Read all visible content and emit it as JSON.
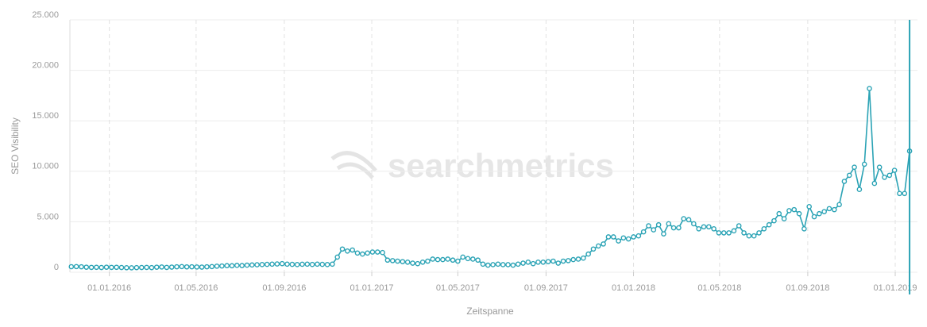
{
  "chart_data": {
    "type": "line",
    "watermark": "searchmetrics",
    "ylabel": "SEO Visibility",
    "xlabel": "Zeitspanne",
    "xlim": [
      "2015-11-07",
      "2019-02-01"
    ],
    "xticks": [
      {
        "value": "2016-01-01",
        "label": "01.01.2016"
      },
      {
        "value": "2016-05-01",
        "label": "01.05.2016"
      },
      {
        "value": "2016-09-01",
        "label": "01.09.2016"
      },
      {
        "value": "2017-01-01",
        "label": "01.01.2017"
      },
      {
        "value": "2017-05-01",
        "label": "01.05.2017"
      },
      {
        "value": "2017-09-01",
        "label": "01.09.2017"
      },
      {
        "value": "2018-01-01",
        "label": "01.01.2018"
      },
      {
        "value": "2018-05-01",
        "label": "01.05.2018"
      },
      {
        "value": "2018-09-01",
        "label": "01.09.2018"
      },
      {
        "value": "2019-01-01",
        "label": "01.01.2019"
      }
    ],
    "ylim": [
      0,
      25000
    ],
    "yticks": [
      0,
      {
        "value": 5000,
        "label": "5.000"
      },
      {
        "value": 10000,
        "label": "10.000"
      },
      {
        "value": 15000,
        "label": "15.000"
      },
      {
        "value": 20000,
        "label": "20.000"
      },
      {
        "value": 25000,
        "label": "25.000"
      }
    ],
    "grid": true,
    "x": [
      "2015-11-09",
      "2015-11-16",
      "2015-11-23",
      "2015-11-30",
      "2015-12-07",
      "2015-12-14",
      "2015-12-21",
      "2015-12-28",
      "2016-01-04",
      "2016-01-11",
      "2016-01-18",
      "2016-01-25",
      "2016-02-01",
      "2016-02-08",
      "2016-02-15",
      "2016-02-22",
      "2016-02-29",
      "2016-03-07",
      "2016-03-14",
      "2016-03-21",
      "2016-03-28",
      "2016-04-04",
      "2016-04-11",
      "2016-04-18",
      "2016-04-25",
      "2016-05-02",
      "2016-05-09",
      "2016-05-16",
      "2016-05-23",
      "2016-05-30",
      "2016-06-06",
      "2016-06-13",
      "2016-06-20",
      "2016-06-27",
      "2016-07-04",
      "2016-07-11",
      "2016-07-18",
      "2016-07-25",
      "2016-08-01",
      "2016-08-08",
      "2016-08-15",
      "2016-08-22",
      "2016-08-29",
      "2016-09-05",
      "2016-09-12",
      "2016-09-19",
      "2016-09-26",
      "2016-10-03",
      "2016-10-10",
      "2016-10-17",
      "2016-10-24",
      "2016-10-31",
      "2016-11-07",
      "2016-11-14",
      "2016-11-21",
      "2016-11-28",
      "2016-12-05",
      "2016-12-12",
      "2016-12-19",
      "2016-12-26",
      "2017-01-02",
      "2017-01-09",
      "2017-01-16",
      "2017-01-23",
      "2017-01-30",
      "2017-02-06",
      "2017-02-13",
      "2017-02-20",
      "2017-02-27",
      "2017-03-06",
      "2017-03-13",
      "2017-03-20",
      "2017-03-27",
      "2017-04-03",
      "2017-04-10",
      "2017-04-17",
      "2017-04-24",
      "2017-05-01",
      "2017-05-08",
      "2017-05-15",
      "2017-05-22",
      "2017-05-29",
      "2017-06-05",
      "2017-06-12",
      "2017-06-19",
      "2017-06-26",
      "2017-07-03",
      "2017-07-10",
      "2017-07-17",
      "2017-07-24",
      "2017-07-31",
      "2017-08-07",
      "2017-08-14",
      "2017-08-21",
      "2017-08-28",
      "2017-09-04",
      "2017-09-11",
      "2017-09-18",
      "2017-09-25",
      "2017-10-02",
      "2017-10-09",
      "2017-10-16",
      "2017-10-23",
      "2017-10-30",
      "2017-11-06",
      "2017-11-13",
      "2017-11-20",
      "2017-11-27",
      "2017-12-04",
      "2017-12-11",
      "2017-12-18",
      "2017-12-25",
      "2018-01-01",
      "2018-01-08",
      "2018-01-15",
      "2018-01-22",
      "2018-01-29",
      "2018-02-05",
      "2018-02-12",
      "2018-02-19",
      "2018-02-26",
      "2018-03-05",
      "2018-03-12",
      "2018-03-19",
      "2018-03-26",
      "2018-04-02",
      "2018-04-09",
      "2018-04-16",
      "2018-04-23",
      "2018-04-30",
      "2018-05-07",
      "2018-05-14",
      "2018-05-21",
      "2018-05-28",
      "2018-06-04",
      "2018-06-11",
      "2018-06-18",
      "2018-06-25",
      "2018-07-02",
      "2018-07-09",
      "2018-07-16",
      "2018-07-23",
      "2018-07-30",
      "2018-08-06",
      "2018-08-13",
      "2018-08-20",
      "2018-08-27",
      "2018-09-03",
      "2018-09-10",
      "2018-09-17",
      "2018-09-24",
      "2018-10-01",
      "2018-10-08",
      "2018-10-15",
      "2018-10-22",
      "2018-10-29",
      "2018-11-05",
      "2018-11-12",
      "2018-11-19",
      "2018-11-26",
      "2018-12-03",
      "2018-12-10",
      "2018-12-17",
      "2018-12-24",
      "2018-12-31",
      "2019-01-07",
      "2019-01-14",
      "2019-01-21"
    ],
    "series": [
      {
        "name": "SEO Visibility",
        "color": "#2ba3b5",
        "values": [
          550,
          560,
          540,
          500,
          480,
          490,
          470,
          500,
          480,
          490,
          470,
          450,
          440,
          460,
          470,
          480,
          460,
          500,
          520,
          480,
          510,
          540,
          560,
          530,
          540,
          520,
          510,
          540,
          560,
          600,
          620,
          650,
          640,
          680,
          660,
          700,
          720,
          740,
          760,
          780,
          800,
          820,
          850,
          800,
          780,
          760,
          790,
          800,
          770,
          800,
          780,
          760,
          800,
          1500,
          2300,
          2100,
          2200,
          1900,
          1800,
          1900,
          2000,
          2000,
          1950,
          1200,
          1150,
          1100,
          1050,
          1000,
          900,
          850,
          1000,
          1100,
          1300,
          1250,
          1250,
          1300,
          1200,
          1100,
          1500,
          1350,
          1300,
          1200,
          800,
          700,
          750,
          800,
          750,
          750,
          700,
          800,
          900,
          1000,
          850,
          1000,
          1000,
          1050,
          1100,
          900,
          1100,
          1150,
          1250,
          1300,
          1400,
          1800,
          2300,
          2600,
          2800,
          3500,
          3500,
          3100,
          3400,
          3300,
          3500,
          3600,
          4000,
          4600,
          4200,
          4700,
          3800,
          4800,
          4400,
          4400,
          5300,
          5200,
          4800,
          4300,
          4500,
          4500,
          4300,
          3900,
          3900,
          3900,
          4100,
          4600,
          3900,
          3600,
          3600,
          3900,
          4300,
          4700,
          5100,
          5800,
          5300,
          6100,
          6200,
          5800,
          4300,
          6500,
          5500,
          5800,
          6000,
          6300,
          6200,
          6700,
          9000,
          9600,
          10400,
          8200,
          10700,
          18200,
          8800,
          10400,
          9400,
          9600,
          10100,
          7800,
          7800,
          12000
        ]
      }
    ]
  }
}
